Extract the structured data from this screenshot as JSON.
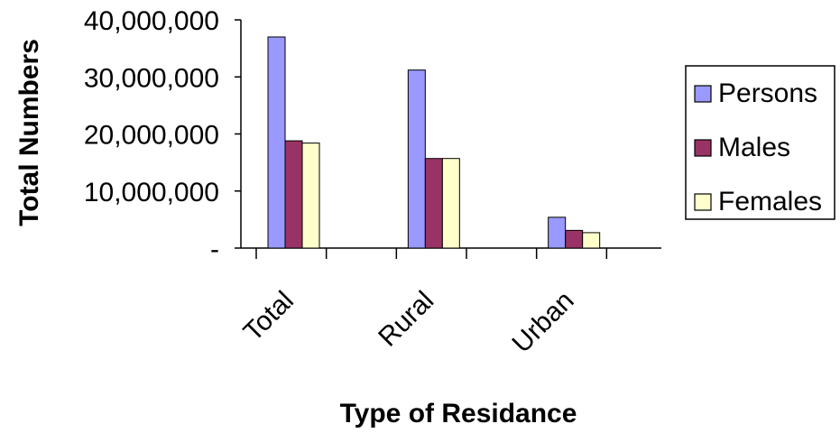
{
  "chart_data": {
    "type": "bar",
    "xlabel": "Type of Residance",
    "ylabel": "Total Numbers",
    "categories": [
      "Total",
      "Rural",
      "Urban"
    ],
    "series": [
      {
        "name": "Persons",
        "values": [
          37000000,
          31200000,
          5400000
        ],
        "color": "#9999ff"
      },
      {
        "name": "Males",
        "values": [
          18800000,
          15700000,
          3100000
        ],
        "color": "#993366"
      },
      {
        "name": "Females",
        "values": [
          18400000,
          15700000,
          2700000
        ],
        "color": "#ffffcc"
      }
    ],
    "ylim": [
      0,
      40000000
    ],
    "yticks": [
      {
        "value": 0,
        "label": "-"
      },
      {
        "value": 10000000,
        "label": "10,000,000"
      },
      {
        "value": 20000000,
        "label": "20,000,000"
      },
      {
        "value": 30000000,
        "label": "30,000,000"
      },
      {
        "value": 40000000,
        "label": "40,000,000"
      }
    ],
    "grid": false,
    "legend_position": "right"
  }
}
